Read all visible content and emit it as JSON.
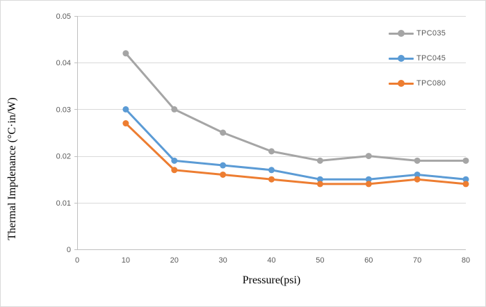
{
  "chart_data": {
    "type": "line",
    "title": "",
    "xlabel": "Pressure(psi)",
    "ylabel": "Thermal Impdenance (°C·in/W)",
    "x": [
      10,
      20,
      30,
      40,
      50,
      60,
      70,
      80
    ],
    "series": [
      {
        "name": "TPC035",
        "color": "#a5a5a5",
        "values": [
          0.042,
          0.03,
          0.025,
          0.021,
          0.019,
          0.02,
          0.019,
          0.019
        ]
      },
      {
        "name": "TPC045",
        "color": "#5b9bd5",
        "values": [
          0.03,
          0.019,
          0.018,
          0.017,
          0.015,
          0.015,
          0.016,
          0.015
        ]
      },
      {
        "name": "TPC080",
        "color": "#ed7d31",
        "values": [
          0.027,
          0.017,
          0.016,
          0.015,
          0.014,
          0.014,
          0.015,
          0.014
        ]
      }
    ],
    "xlim": [
      0,
      80
    ],
    "ylim": [
      0,
      0.05
    ],
    "x_ticks": [
      "0",
      "10",
      "20",
      "30",
      "40",
      "50",
      "60",
      "70",
      "80"
    ],
    "y_ticks": [
      "0",
      "0.01",
      "0.02",
      "0.03",
      "0.04",
      "0.05"
    ],
    "grid": "horizontal",
    "legend_position": "top-right",
    "colors": {
      "grid_line": "#d9d9d9",
      "axis_line": "#bfbfbf",
      "tick_text": "#595959",
      "axis_title_text": "#000000",
      "background": "#ffffff",
      "frame_border": "#d9d9d9"
    }
  }
}
